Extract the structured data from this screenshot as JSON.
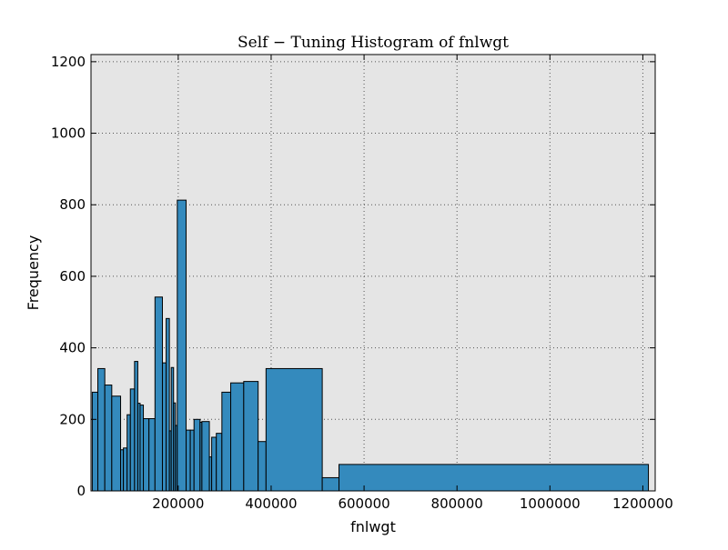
{
  "chart_data": {
    "type": "bar",
    "title": "Self − Tuning Histogram of fnlwgt",
    "xlabel": "fnlwgt",
    "ylabel": "Frequency",
    "xlim": [
      12285,
      1226583
    ],
    "ylim": [
      0,
      1220
    ],
    "grid": true,
    "xticks": [
      200000,
      400000,
      600000,
      800000,
      1000000,
      1200000
    ],
    "yticks": [
      0,
      200,
      400,
      600,
      800,
      1000,
      1200
    ],
    "colors": {
      "bar_fill": "#348abd",
      "bar_edge": "#000000",
      "plot_bg": "#e5e5e5",
      "grid": "#555555"
    },
    "bins": [
      {
        "x0": 15000,
        "x1": 27000,
        "count": 276
      },
      {
        "x0": 27000,
        "x1": 42000,
        "count": 342
      },
      {
        "x0": 42000,
        "x1": 57000,
        "count": 296
      },
      {
        "x0": 57000,
        "x1": 76000,
        "count": 265
      },
      {
        "x0": 76000,
        "x1": 82000,
        "count": 115
      },
      {
        "x0": 82000,
        "x1": 90000,
        "count": 120
      },
      {
        "x0": 90000,
        "x1": 97000,
        "count": 213
      },
      {
        "x0": 97000,
        "x1": 106000,
        "count": 285
      },
      {
        "x0": 106000,
        "x1": 113000,
        "count": 362
      },
      {
        "x0": 113000,
        "x1": 118000,
        "count": 245
      },
      {
        "x0": 118000,
        "x1": 125000,
        "count": 240
      },
      {
        "x0": 125000,
        "x1": 137000,
        "count": 202
      },
      {
        "x0": 137000,
        "x1": 150000,
        "count": 202
      },
      {
        "x0": 150000,
        "x1": 166000,
        "count": 542
      },
      {
        "x0": 166000,
        "x1": 174000,
        "count": 358
      },
      {
        "x0": 174000,
        "x1": 181000,
        "count": 482
      },
      {
        "x0": 181000,
        "x1": 185000,
        "count": 168
      },
      {
        "x0": 185000,
        "x1": 190000,
        "count": 345
      },
      {
        "x0": 190000,
        "x1": 194000,
        "count": 246
      },
      {
        "x0": 194000,
        "x1": 198000,
        "count": 183
      },
      {
        "x0": 198000,
        "x1": 217000,
        "count": 813
      },
      {
        "x0": 217000,
        "x1": 226000,
        "count": 170
      },
      {
        "x0": 226000,
        "x1": 234000,
        "count": 170
      },
      {
        "x0": 234000,
        "x1": 247000,
        "count": 200
      },
      {
        "x0": 247000,
        "x1": 251000,
        "count": 192
      },
      {
        "x0": 251000,
        "x1": 267000,
        "count": 194
      },
      {
        "x0": 267000,
        "x1": 272000,
        "count": 95
      },
      {
        "x0": 272000,
        "x1": 282000,
        "count": 150
      },
      {
        "x0": 282000,
        "x1": 294000,
        "count": 161
      },
      {
        "x0": 294000,
        "x1": 313000,
        "count": 276
      },
      {
        "x0": 313000,
        "x1": 341000,
        "count": 302
      },
      {
        "x0": 341000,
        "x1": 372000,
        "count": 306
      },
      {
        "x0": 372000,
        "x1": 389000,
        "count": 138
      },
      {
        "x0": 389000,
        "x1": 510000,
        "count": 342
      },
      {
        "x0": 510000,
        "x1": 546000,
        "count": 37
      },
      {
        "x0": 546000,
        "x1": 1212000,
        "count": 74
      }
    ]
  }
}
